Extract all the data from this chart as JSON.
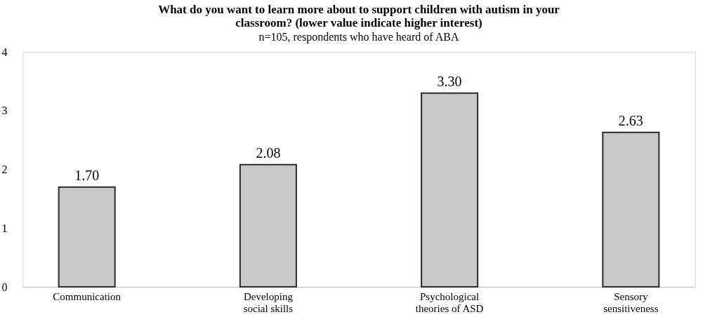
{
  "chart_data": {
    "type": "bar",
    "title": "What do you want to learn more about to support children with autism in your classroom? (lower value indicate higher interest)",
    "subtitle": "n=105, respondents who have heard of ABA",
    "categories": [
      "Communication",
      "Developing social skills",
      "Psychological theories of ASD",
      "Sensory sensitiveness"
    ],
    "values": [
      1.7,
      2.08,
      3.3,
      2.63
    ],
    "color": "#c9c9c9",
    "ylim": [
      0,
      4
    ],
    "yticks": [
      0,
      1,
      2,
      3,
      4
    ],
    "grid": false,
    "value_labels": [
      "1.70",
      "2.08",
      "3.30",
      "2.63"
    ]
  }
}
